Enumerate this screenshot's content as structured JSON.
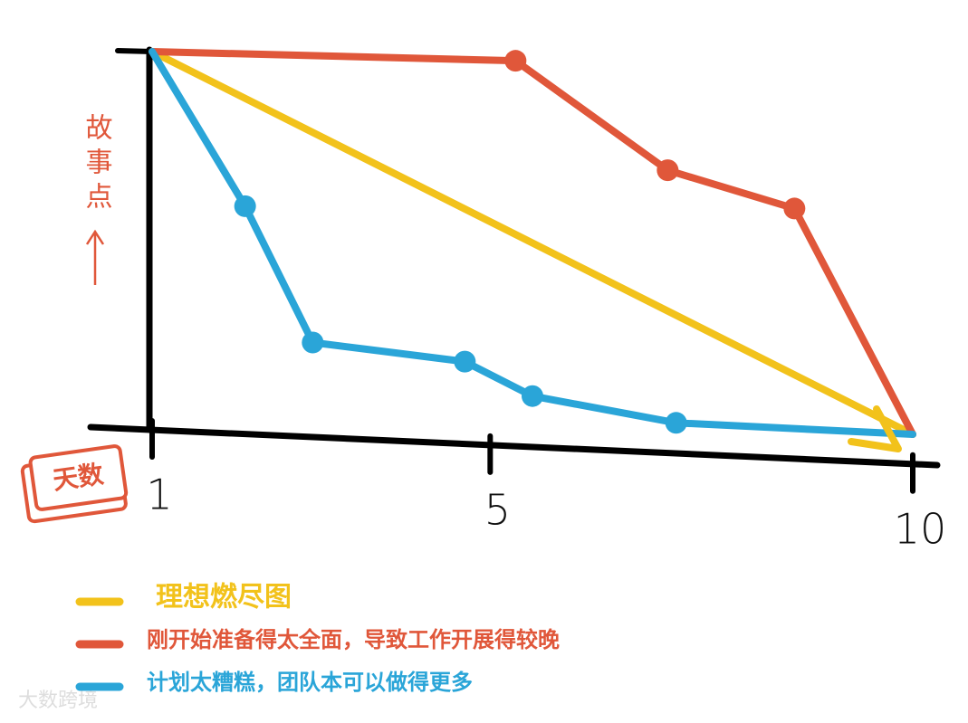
{
  "chart_data": {
    "type": "line",
    "y_label": "故事点",
    "x_label": "天数",
    "xlim": [
      1,
      10
    ],
    "xticks": [
      1,
      5,
      10
    ],
    "ylim": [
      0,
      100
    ],
    "series": [
      {
        "name": "理想燃尽图",
        "color": "#f2c21b",
        "x": [
          1,
          10
        ],
        "values": [
          100,
          0
        ]
      },
      {
        "name": "刚开始准备得太全面，导致工作开展得较晚",
        "color": "#e0573a",
        "x": [
          1,
          5.3,
          7.1,
          8.6,
          10
        ],
        "values": [
          100,
          97.6,
          69,
          59,
          0
        ]
      },
      {
        "name": "计划太糟糕，团队本可以做得更多",
        "color": "#2aa5d8",
        "x": [
          1,
          2.1,
          2.9,
          4.7,
          5.5,
          7.2,
          10
        ],
        "values": [
          100,
          59.6,
          24,
          19,
          10,
          3,
          0
        ]
      }
    ],
    "watermark": "大数跨境"
  }
}
